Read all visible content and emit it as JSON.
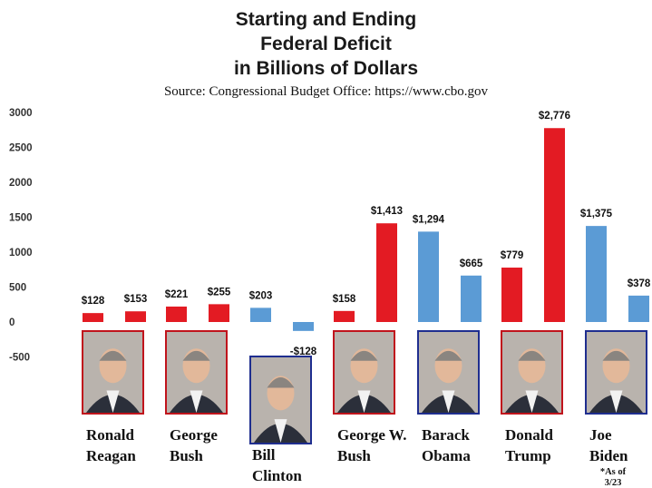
{
  "chart_data": {
    "type": "bar",
    "title_lines": [
      "Starting and Ending",
      "Federal Deficit",
      "in Billions of Dollars"
    ],
    "subtitle": "Source: Congressional Budget Office: https://www.cbo.gov",
    "ylim": [
      -500,
      3000
    ],
    "yticks": [
      "3000",
      "2500",
      "2000",
      "1500",
      "1000",
      "500",
      "0",
      "-500"
    ],
    "ytick_values": [
      3000,
      2500,
      2000,
      1500,
      1000,
      500,
      0,
      -500
    ],
    "grid": false,
    "presidents": [
      {
        "name_lines": [
          "Ronald",
          "Reagan"
        ],
        "party_color": "#e31b23",
        "bars": [
          {
            "value": 128,
            "label": "$128"
          },
          {
            "value": 153,
            "label": "$153"
          }
        ]
      },
      {
        "name_lines": [
          "George",
          "Bush"
        ],
        "party_color": "#e31b23",
        "bars": [
          {
            "value": 221,
            "label": "$221"
          },
          {
            "value": 255,
            "label": "$255"
          }
        ]
      },
      {
        "name_lines": [
          "Bill",
          "Clinton"
        ],
        "party_color": "#5b9bd5",
        "bars": [
          {
            "value": 203,
            "label": "$203"
          },
          {
            "value": -128,
            "label": "-$128"
          }
        ]
      },
      {
        "name_lines": [
          "George W.",
          "Bush"
        ],
        "party_color": "#e31b23",
        "bars": [
          {
            "value": 158,
            "label": "$158"
          },
          {
            "value": 1413,
            "label": "$1,413"
          }
        ]
      },
      {
        "name_lines": [
          "Barack",
          "Obama"
        ],
        "party_color": "#5b9bd5",
        "bars": [
          {
            "value": 1294,
            "label": "$1,294"
          },
          {
            "value": 665,
            "label": "$665"
          }
        ]
      },
      {
        "name_lines": [
          "Donald",
          "Trump"
        ],
        "party_color": "#e31b23",
        "bars": [
          {
            "value": 779,
            "label": "$779"
          },
          {
            "value": 2776,
            "label": "$2,776"
          }
        ]
      },
      {
        "name_lines": [
          "Joe",
          "Biden"
        ],
        "party_color": "#5b9bd5",
        "note_lines": [
          "*As of",
          "3/23"
        ],
        "bars": [
          {
            "value": 1375,
            "label": "$1,375"
          },
          {
            "value": 378,
            "label": "$378"
          }
        ]
      }
    ],
    "colors": {
      "republican": "#e31b23",
      "democrat": "#5b9bd5",
      "frame_republican": "#c0141c",
      "frame_democrat": "#1f2e8f"
    }
  }
}
